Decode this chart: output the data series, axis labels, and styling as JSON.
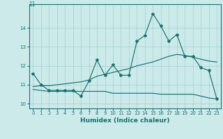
{
  "xlabel": "Humidex (Indice chaleur)",
  "xlim": [
    -0.5,
    23.5
  ],
  "ylim": [
    9.75,
    15.25
  ],
  "bg_color": "#cceaea",
  "grid_color": "#aad4d4",
  "line_color": "#1a7070",
  "x_ticks": [
    0,
    1,
    2,
    3,
    4,
    5,
    6,
    7,
    8,
    9,
    10,
    11,
    12,
    13,
    14,
    15,
    16,
    17,
    18,
    19,
    20,
    21,
    22,
    23
  ],
  "y_ticks": [
    10,
    11,
    12,
    13,
    14
  ],
  "title_label": "11",
  "main_x": [
    0,
    1,
    2,
    3,
    4,
    5,
    6,
    7,
    8,
    9,
    10,
    11,
    12,
    13,
    14,
    15,
    16,
    17,
    18,
    19,
    20,
    21,
    22,
    23
  ],
  "main_y": [
    11.6,
    11.0,
    10.7,
    10.7,
    10.7,
    10.7,
    10.4,
    11.2,
    12.3,
    11.5,
    12.05,
    11.5,
    11.5,
    13.3,
    13.6,
    14.75,
    14.1,
    13.3,
    13.65,
    12.5,
    12.5,
    11.9,
    11.75,
    10.25
  ],
  "trend_x": [
    0,
    1,
    2,
    3,
    4,
    5,
    6,
    7,
    8,
    9,
    10,
    11,
    12,
    13,
    14,
    15,
    16,
    17,
    18,
    19,
    20,
    21,
    22,
    23
  ],
  "trend_y": [
    10.9,
    10.95,
    10.95,
    11.0,
    11.05,
    11.1,
    11.15,
    11.25,
    11.45,
    11.55,
    11.65,
    11.75,
    11.85,
    12.0,
    12.1,
    12.2,
    12.35,
    12.5,
    12.6,
    12.55,
    12.45,
    12.35,
    12.25,
    12.2
  ],
  "flat_x": [
    0,
    1,
    2,
    3,
    4,
    5,
    6,
    7,
    8,
    9,
    10,
    11,
    12,
    13,
    14,
    15,
    16,
    17,
    18,
    19,
    20,
    21,
    22,
    23
  ],
  "flat_y": [
    10.75,
    10.7,
    10.65,
    10.65,
    10.65,
    10.65,
    10.65,
    10.65,
    10.65,
    10.65,
    10.55,
    10.55,
    10.55,
    10.55,
    10.55,
    10.55,
    10.5,
    10.5,
    10.5,
    10.5,
    10.5,
    10.4,
    10.3,
    10.25
  ]
}
